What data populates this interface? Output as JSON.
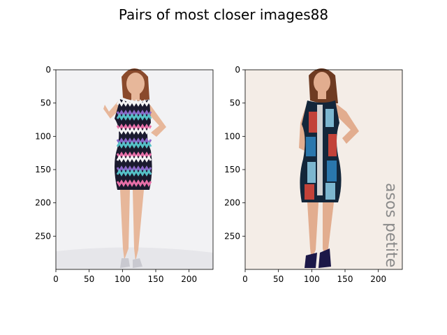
{
  "figure": {
    "title": "Pairs of most closer images88"
  },
  "chart_data": [
    {
      "type": "image",
      "x_ticks": [
        0,
        50,
        100,
        150,
        200
      ],
      "y_ticks": [
        0,
        50,
        100,
        150,
        200,
        250
      ],
      "xlim": [
        0,
        236
      ],
      "ylim": [
        300,
        0
      ],
      "image": {
        "background": "#f2f2f4",
        "skin": "#e7b79a",
        "hair": "#8a4a2c",
        "dress_colors": [
          "#1a1a2e",
          "#f4f4f4",
          "#8a67c8",
          "#55c1c7",
          "#e86fa8"
        ],
        "shoe": "#c9c9d0"
      }
    },
    {
      "type": "image",
      "x_ticks": [
        0,
        50,
        100,
        150,
        200
      ],
      "y_ticks": [
        0,
        50,
        100,
        150,
        200,
        250
      ],
      "xlim": [
        0,
        236
      ],
      "ylim": [
        300,
        0
      ],
      "image": {
        "background": "#f4ede7",
        "skin": "#e2ad8f",
        "hair": "#6e3b22",
        "dress_colors": [
          "#13263a",
          "#2f86c2",
          "#e2483a",
          "#8fd0ea",
          "#f3f1ee"
        ],
        "shoe": "#1c1848",
        "watermark": "asos petite"
      }
    }
  ]
}
